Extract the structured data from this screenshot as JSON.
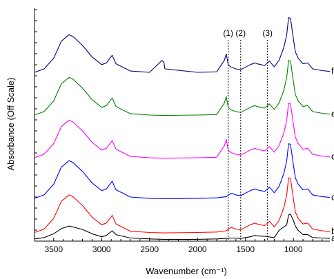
{
  "chart_data": {
    "type": "line",
    "title": "",
    "xlabel": "Wavenumber (cm⁻¹)",
    "ylabel": "Absorbance (Off Scale)",
    "xlim": [
      3700,
      620
    ],
    "x_reversed": true,
    "x_ticks": [
      3500,
      3000,
      2500,
      2000,
      1500,
      1000
    ],
    "y_ticks_labeled": false,
    "grid": false,
    "annotations": [
      {
        "label": "(1)",
        "x": 1680
      },
      {
        "label": "(2)",
        "x": 1550
      },
      {
        "label": "(3)",
        "x": 1270
      }
    ],
    "series": [
      {
        "name": "a",
        "color": "#000000",
        "offset": 0,
        "points": [
          [
            3700,
            0.02
          ],
          [
            3600,
            0.05
          ],
          [
            3500,
            0.14
          ],
          [
            3420,
            0.26
          ],
          [
            3340,
            0.32
          ],
          [
            3300,
            0.3
          ],
          [
            3200,
            0.24
          ],
          [
            3100,
            0.14
          ],
          [
            3000,
            0.07
          ],
          [
            2950,
            0.1
          ],
          [
            2890,
            0.21
          ],
          [
            2850,
            0.12
          ],
          [
            2700,
            0.04
          ],
          [
            2500,
            0.02
          ],
          [
            2360,
            0.01
          ],
          [
            2000,
            0.01
          ],
          [
            1800,
            0.02
          ],
          [
            1700,
            0.03
          ],
          [
            1650,
            0.04
          ],
          [
            1550,
            0.03
          ],
          [
            1450,
            0.07
          ],
          [
            1400,
            0.1
          ],
          [
            1380,
            0.09
          ],
          [
            1300,
            0.08
          ],
          [
            1200,
            0.05
          ],
          [
            1150,
            0.22
          ],
          [
            1100,
            0.3
          ],
          [
            1070,
            0.35
          ],
          [
            1050,
            0.58
          ],
          [
            1030,
            0.6
          ],
          [
            1000,
            0.45
          ],
          [
            980,
            0.32
          ],
          [
            950,
            0.22
          ],
          [
            900,
            0.12
          ],
          [
            850,
            0.12
          ],
          [
            800,
            0.05
          ],
          [
            700,
            0.04
          ],
          [
            620,
            0.03
          ]
        ]
      },
      {
        "name": "b",
        "color": "#ff0000",
        "offset": 0.15,
        "points": [
          [
            3700,
            0.02
          ],
          [
            3600,
            0.1
          ],
          [
            3500,
            0.35
          ],
          [
            3420,
            0.75
          ],
          [
            3340,
            0.9
          ],
          [
            3300,
            0.86
          ],
          [
            3200,
            0.65
          ],
          [
            3100,
            0.38
          ],
          [
            3000,
            0.2
          ],
          [
            2950,
            0.24
          ],
          [
            2890,
            0.42
          ],
          [
            2850,
            0.22
          ],
          [
            2700,
            0.05
          ],
          [
            2500,
            0.02
          ],
          [
            2360,
            0.01
          ],
          [
            2000,
            0.02
          ],
          [
            1800,
            0.03
          ],
          [
            1700,
            0.06
          ],
          [
            1650,
            0.14
          ],
          [
            1600,
            0.1
          ],
          [
            1550,
            0.08
          ],
          [
            1450,
            0.2
          ],
          [
            1400,
            0.24
          ],
          [
            1380,
            0.22
          ],
          [
            1300,
            0.18
          ],
          [
            1250,
            0.28
          ],
          [
            1200,
            0.15
          ],
          [
            1150,
            0.3
          ],
          [
            1100,
            0.6
          ],
          [
            1070,
            0.9
          ],
          [
            1050,
            1.3
          ],
          [
            1030,
            1.28
          ],
          [
            1000,
            0.8
          ],
          [
            980,
            0.5
          ],
          [
            950,
            0.35
          ],
          [
            900,
            0.22
          ],
          [
            850,
            0.24
          ],
          [
            800,
            0.1
          ],
          [
            700,
            0.06
          ],
          [
            620,
            0.04
          ]
        ]
      },
      {
        "name": "c",
        "color": "#0000ff",
        "offset": 0.95,
        "points": [
          [
            3700,
            0.02
          ],
          [
            3600,
            0.1
          ],
          [
            3500,
            0.35
          ],
          [
            3420,
            0.75
          ],
          [
            3340,
            0.9
          ],
          [
            3300,
            0.86
          ],
          [
            3200,
            0.65
          ],
          [
            3100,
            0.38
          ],
          [
            3000,
            0.2
          ],
          [
            2950,
            0.24
          ],
          [
            2890,
            0.42
          ],
          [
            2850,
            0.22
          ],
          [
            2700,
            0.05
          ],
          [
            2500,
            0.02
          ],
          [
            2360,
            0.01
          ],
          [
            2000,
            0.02
          ],
          [
            1800,
            0.03
          ],
          [
            1700,
            0.06
          ],
          [
            1650,
            0.14
          ],
          [
            1600,
            0.1
          ],
          [
            1550,
            0.08
          ],
          [
            1450,
            0.2
          ],
          [
            1400,
            0.24
          ],
          [
            1380,
            0.22
          ],
          [
            1300,
            0.18
          ],
          [
            1250,
            0.28
          ],
          [
            1200,
            0.15
          ],
          [
            1150,
            0.3
          ],
          [
            1100,
            0.6
          ],
          [
            1070,
            0.9
          ],
          [
            1050,
            1.3
          ],
          [
            1030,
            1.28
          ],
          [
            1000,
            0.8
          ],
          [
            980,
            0.5
          ],
          [
            950,
            0.35
          ],
          [
            900,
            0.22
          ],
          [
            850,
            0.24
          ],
          [
            800,
            0.1
          ],
          [
            700,
            0.06
          ],
          [
            620,
            0.04
          ]
        ]
      },
      {
        "name": "d",
        "color": "#ff00ff",
        "offset": 1.9,
        "points": [
          [
            3700,
            0.02
          ],
          [
            3600,
            0.1
          ],
          [
            3500,
            0.35
          ],
          [
            3420,
            0.75
          ],
          [
            3340,
            0.9
          ],
          [
            3300,
            0.86
          ],
          [
            3200,
            0.65
          ],
          [
            3100,
            0.38
          ],
          [
            3000,
            0.2
          ],
          [
            2950,
            0.24
          ],
          [
            2890,
            0.42
          ],
          [
            2850,
            0.22
          ],
          [
            2700,
            0.05
          ],
          [
            2500,
            0.02
          ],
          [
            2360,
            0.01
          ],
          [
            2000,
            0.02
          ],
          [
            1800,
            0.03
          ],
          [
            1720,
            0.3
          ],
          [
            1700,
            0.45
          ],
          [
            1680,
            0.2
          ],
          [
            1650,
            0.14
          ],
          [
            1600,
            0.1
          ],
          [
            1550,
            0.08
          ],
          [
            1450,
            0.2
          ],
          [
            1400,
            0.24
          ],
          [
            1380,
            0.22
          ],
          [
            1300,
            0.18
          ],
          [
            1250,
            0.28
          ],
          [
            1200,
            0.15
          ],
          [
            1150,
            0.3
          ],
          [
            1100,
            0.6
          ],
          [
            1070,
            0.9
          ],
          [
            1050,
            1.3
          ],
          [
            1030,
            1.28
          ],
          [
            1000,
            0.8
          ],
          [
            980,
            0.5
          ],
          [
            950,
            0.35
          ],
          [
            900,
            0.22
          ],
          [
            850,
            0.24
          ],
          [
            800,
            0.1
          ],
          [
            700,
            0.06
          ],
          [
            620,
            0.04
          ]
        ]
      },
      {
        "name": "e",
        "color": "#008000",
        "offset": 2.9,
        "points": [
          [
            3700,
            0.02
          ],
          [
            3600,
            0.1
          ],
          [
            3500,
            0.35
          ],
          [
            3420,
            0.75
          ],
          [
            3340,
            0.9
          ],
          [
            3300,
            0.86
          ],
          [
            3200,
            0.65
          ],
          [
            3100,
            0.38
          ],
          [
            3000,
            0.2
          ],
          [
            2950,
            0.24
          ],
          [
            2890,
            0.42
          ],
          [
            2850,
            0.22
          ],
          [
            2700,
            0.05
          ],
          [
            2500,
            0.02
          ],
          [
            2360,
            0.01
          ],
          [
            2000,
            0.02
          ],
          [
            1800,
            0.03
          ],
          [
            1720,
            0.3
          ],
          [
            1700,
            0.45
          ],
          [
            1680,
            0.2
          ],
          [
            1650,
            0.14
          ],
          [
            1600,
            0.1
          ],
          [
            1550,
            0.08
          ],
          [
            1450,
            0.2
          ],
          [
            1400,
            0.24
          ],
          [
            1380,
            0.22
          ],
          [
            1300,
            0.18
          ],
          [
            1250,
            0.28
          ],
          [
            1200,
            0.15
          ],
          [
            1150,
            0.3
          ],
          [
            1100,
            0.6
          ],
          [
            1070,
            0.9
          ],
          [
            1050,
            1.3
          ],
          [
            1030,
            1.28
          ],
          [
            1000,
            0.8
          ],
          [
            980,
            0.5
          ],
          [
            950,
            0.35
          ],
          [
            900,
            0.22
          ],
          [
            850,
            0.24
          ],
          [
            800,
            0.1
          ],
          [
            700,
            0.06
          ],
          [
            620,
            0.04
          ]
        ]
      },
      {
        "name": "f",
        "color": "#000080",
        "offset": 3.9,
        "points": [
          [
            3700,
            0.02
          ],
          [
            3600,
            0.1
          ],
          [
            3500,
            0.35
          ],
          [
            3420,
            0.75
          ],
          [
            3340,
            0.9
          ],
          [
            3300,
            0.86
          ],
          [
            3200,
            0.65
          ],
          [
            3100,
            0.38
          ],
          [
            3000,
            0.2
          ],
          [
            2950,
            0.24
          ],
          [
            2890,
            0.42
          ],
          [
            2850,
            0.22
          ],
          [
            2700,
            0.05
          ],
          [
            2500,
            0.02
          ],
          [
            2370,
            0.3
          ],
          [
            2350,
            0.25
          ],
          [
            2340,
            0.1
          ],
          [
            2000,
            0.02
          ],
          [
            1800,
            0.03
          ],
          [
            1720,
            0.3
          ],
          [
            1700,
            0.45
          ],
          [
            1680,
            0.2
          ],
          [
            1650,
            0.14
          ],
          [
            1600,
            0.1
          ],
          [
            1550,
            0.08
          ],
          [
            1450,
            0.2
          ],
          [
            1400,
            0.24
          ],
          [
            1380,
            0.22
          ],
          [
            1300,
            0.18
          ],
          [
            1250,
            0.28
          ],
          [
            1200,
            0.15
          ],
          [
            1150,
            0.3
          ],
          [
            1100,
            0.6
          ],
          [
            1070,
            0.9
          ],
          [
            1050,
            1.3
          ],
          [
            1030,
            1.28
          ],
          [
            1000,
            0.8
          ],
          [
            980,
            0.5
          ],
          [
            950,
            0.35
          ],
          [
            900,
            0.22
          ],
          [
            850,
            0.24
          ],
          [
            800,
            0.1
          ],
          [
            700,
            0.06
          ],
          [
            620,
            0.04
          ]
        ]
      }
    ]
  }
}
